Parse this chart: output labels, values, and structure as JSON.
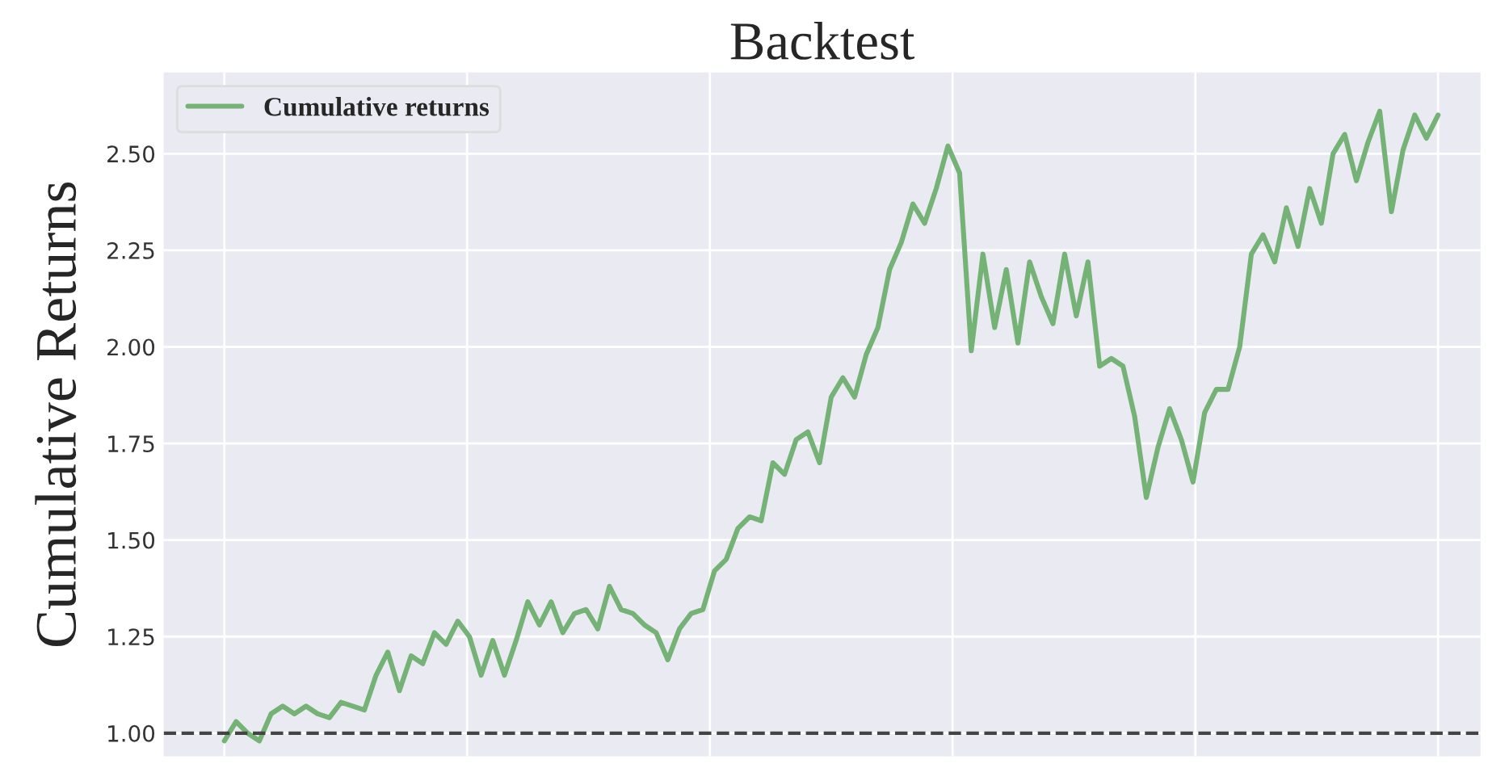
{
  "chart_data": {
    "type": "line",
    "title": "Backtest",
    "ylabel": "Cumulative Returns",
    "categories": [
      null,
      null,
      null,
      null,
      null,
      null,
      null,
      null,
      null,
      null,
      null,
      null,
      null,
      null,
      null,
      null,
      null,
      null,
      null,
      null,
      null,
      null,
      null,
      null,
      null,
      null,
      null,
      null,
      null,
      null,
      null,
      null,
      null,
      null,
      null,
      null,
      null,
      null,
      null,
      null,
      null,
      null,
      null,
      null,
      null,
      null,
      null,
      null,
      null,
      null,
      null,
      null,
      null,
      null,
      null,
      null,
      null,
      null,
      null,
      null,
      null,
      null,
      null,
      null,
      null,
      null,
      null,
      null,
      null,
      null,
      null,
      null,
      null,
      null,
      null,
      null,
      null,
      null,
      null,
      null,
      null,
      null,
      null,
      null,
      null,
      null,
      null,
      null,
      null,
      null,
      null,
      null,
      null,
      null,
      null,
      null,
      null,
      null,
      null,
      null,
      null,
      null,
      null,
      null,
      null
    ],
    "series": [
      {
        "name": "Cumulative returns",
        "color": "#75b275",
        "values": [
          0.98,
          1.03,
          1.0,
          0.98,
          1.05,
          1.07,
          1.05,
          1.07,
          1.05,
          1.04,
          1.08,
          1.07,
          1.06,
          1.15,
          1.21,
          1.11,
          1.2,
          1.18,
          1.26,
          1.23,
          1.29,
          1.25,
          1.15,
          1.24,
          1.15,
          1.24,
          1.34,
          1.28,
          1.34,
          1.26,
          1.31,
          1.32,
          1.27,
          1.38,
          1.32,
          1.31,
          1.28,
          1.26,
          1.19,
          1.27,
          1.31,
          1.32,
          1.42,
          1.45,
          1.53,
          1.56,
          1.55,
          1.7,
          1.67,
          1.76,
          1.78,
          1.7,
          1.87,
          1.92,
          1.87,
          1.98,
          2.05,
          2.2,
          2.27,
          2.37,
          2.32,
          2.41,
          2.52,
          2.45,
          1.99,
          2.24,
          2.05,
          2.2,
          2.01,
          2.22,
          2.13,
          2.06,
          2.24,
          2.08,
          2.22,
          1.95,
          1.97,
          1.95,
          1.82,
          1.61,
          1.74,
          1.84,
          1.76,
          1.65,
          1.83,
          1.89,
          1.89,
          2.0,
          2.24,
          2.29,
          2.22,
          2.36,
          2.26,
          2.41,
          2.32,
          2.5,
          2.55,
          2.43,
          2.53,
          2.61,
          2.35,
          2.51,
          2.6,
          2.54,
          2.6
        ]
      }
    ],
    "ylim": [
      0.94,
      2.71
    ],
    "yticks": [
      {
        "value": 1.0,
        "label": "1.00"
      },
      {
        "value": 1.25,
        "label": "1.25"
      },
      {
        "value": 1.5,
        "label": "1.50"
      },
      {
        "value": 1.75,
        "label": "1.75"
      },
      {
        "value": 2.0,
        "label": "2.00"
      },
      {
        "value": 2.25,
        "label": "2.25"
      },
      {
        "value": 2.5,
        "label": "2.50"
      }
    ],
    "tick_labels": "y",
    "ref_lines": [
      {
        "axis": "y",
        "value": 1.0,
        "color": "#444444",
        "line_style": "dashed"
      }
    ],
    "grid": true,
    "legend": "top left",
    "line_style": "solid",
    "marker": "none"
  }
}
